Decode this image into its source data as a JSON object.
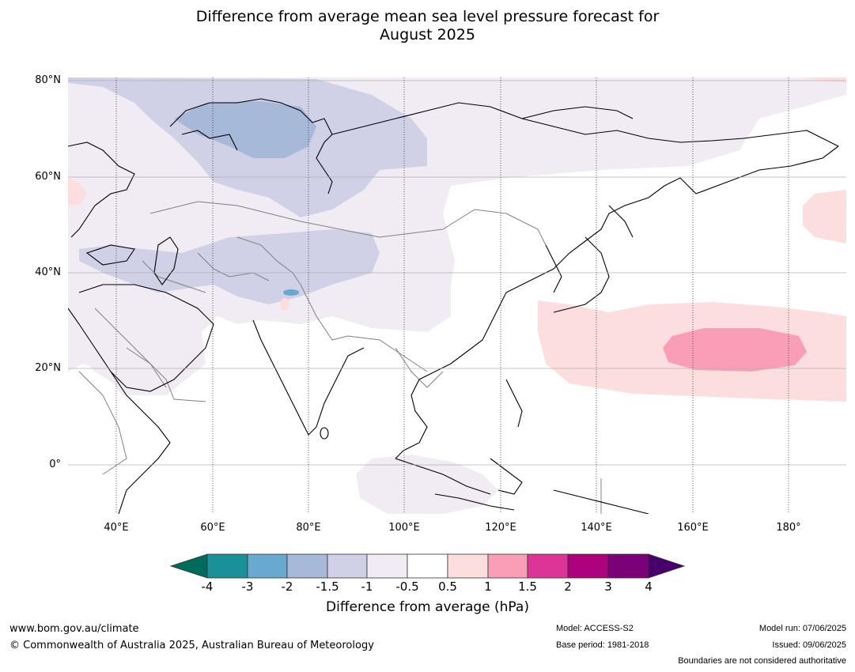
{
  "title": {
    "line1": "Difference from average mean sea level pressure forecast for",
    "line2": "August 2025"
  },
  "map": {
    "lat_labels": [
      "80°N",
      "60°N",
      "40°N",
      "20°N",
      "0°"
    ],
    "lon_labels": [
      "40°E",
      "60°E",
      "80°E",
      "100°E",
      "120°E",
      "140°E",
      "160°E",
      "180°"
    ],
    "ocean_color": "#ffffff",
    "coastline_color": "#000000",
    "boundary_color": "#808080"
  },
  "colorbar": {
    "title": "Difference from average (hPa)",
    "ticks": [
      "-4",
      "-3",
      "-2",
      "-1.5",
      "-1",
      "-0.5",
      "0.5",
      "1",
      "1.5",
      "2",
      "3",
      "4"
    ],
    "colors": [
      "#006a5b",
      "#1a9099",
      "#67a9cf",
      "#a6b9d8",
      "#d0d1e6",
      "#f1ebf4",
      "#ffffff",
      "#fddede",
      "#f99eb6",
      "#dd3497",
      "#ae017e",
      "#7a0177",
      "#49006a"
    ]
  },
  "footer": {
    "website": "www.bom.gov.au/climate",
    "copyright": "© Commonwealth of Australia 2025, Australian Bureau of Meteorology",
    "model": "Model: ACCESS-S2",
    "base_period": "Base period: 1981-2018",
    "model_run": "Model run: 07/06/2025",
    "issued": "Issued: 09/06/2025",
    "disclaimer": "Boundaries are not considered authoritative"
  }
}
